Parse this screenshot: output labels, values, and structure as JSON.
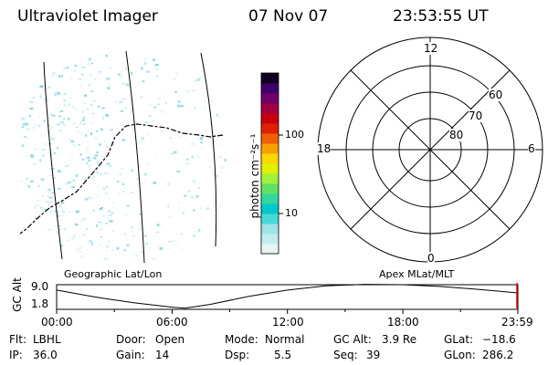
{
  "header": {
    "instrument": "Ultraviolet Imager",
    "date": "07 Nov 07",
    "time": "23:53:55 UT"
  },
  "colorbar": {
    "label": "photon cm⁻²s⁻¹",
    "ticks": [
      "100",
      "10"
    ],
    "colors": [
      "#e8f4f4",
      "#c4ecec",
      "#9ee4e4",
      "#48d8d8",
      "#00c8c8",
      "#30d8a0",
      "#60e060",
      "#a0f040",
      "#e0f000",
      "#f8d800",
      "#f8a000",
      "#f06000",
      "#e02000",
      "#c80010",
      "#a00040",
      "#70006a",
      "#40006a",
      "#100020"
    ]
  },
  "polar_grid": {
    "mlt_labels": [
      "12",
      "18",
      "6",
      "0"
    ],
    "lat_labels": [
      "60",
      "70",
      "80"
    ]
  },
  "image_panel": {
    "left_label": "Geographic Lat/Lon",
    "right_label": "Apex MLat/MLT"
  },
  "altitude_plot": {
    "ylabel": "GC Alt",
    "yticks": [
      "9.0",
      "1.8"
    ],
    "xticks": [
      "00:00",
      "06:00",
      "12:00",
      "18:00",
      "23:59"
    ],
    "chart_data": {
      "type": "line",
      "x": [
        "00:00",
        "02:00",
        "04:00",
        "06:00",
        "06:40",
        "08:00",
        "10:00",
        "12:00",
        "14:00",
        "16:00",
        "18:00",
        "20:00",
        "22:00",
        "23:59"
      ],
      "values": [
        7.6,
        5.4,
        3.6,
        2.2,
        1.9,
        3.1,
        5.6,
        7.6,
        8.9,
        9.4,
        9.3,
        8.7,
        7.8,
        6.7
      ],
      "ylim": [
        1.8,
        9.0
      ],
      "xlim": [
        0,
        23.98
      ]
    }
  },
  "status": {
    "flt_label": "Flt:",
    "flt_value": "LBHL",
    "ip_label": "IP:",
    "ip_value": "36.0",
    "door_label": "Door:",
    "door_value": "Open",
    "gain_label": "Gain:",
    "gain_value": "14",
    "mode_label": "Mode:",
    "mode_value": "Normal",
    "dsp_label": "Dsp:",
    "dsp_value": "5.5",
    "gcalt_label": "GC Alt:",
    "gcalt_value": "3.9 Re",
    "seq_label": "Seq:",
    "seq_value": "39",
    "glat_label": "GLat:",
    "glat_value": "−18.6",
    "glon_label": "GLon:",
    "glon_value": "286.2"
  }
}
